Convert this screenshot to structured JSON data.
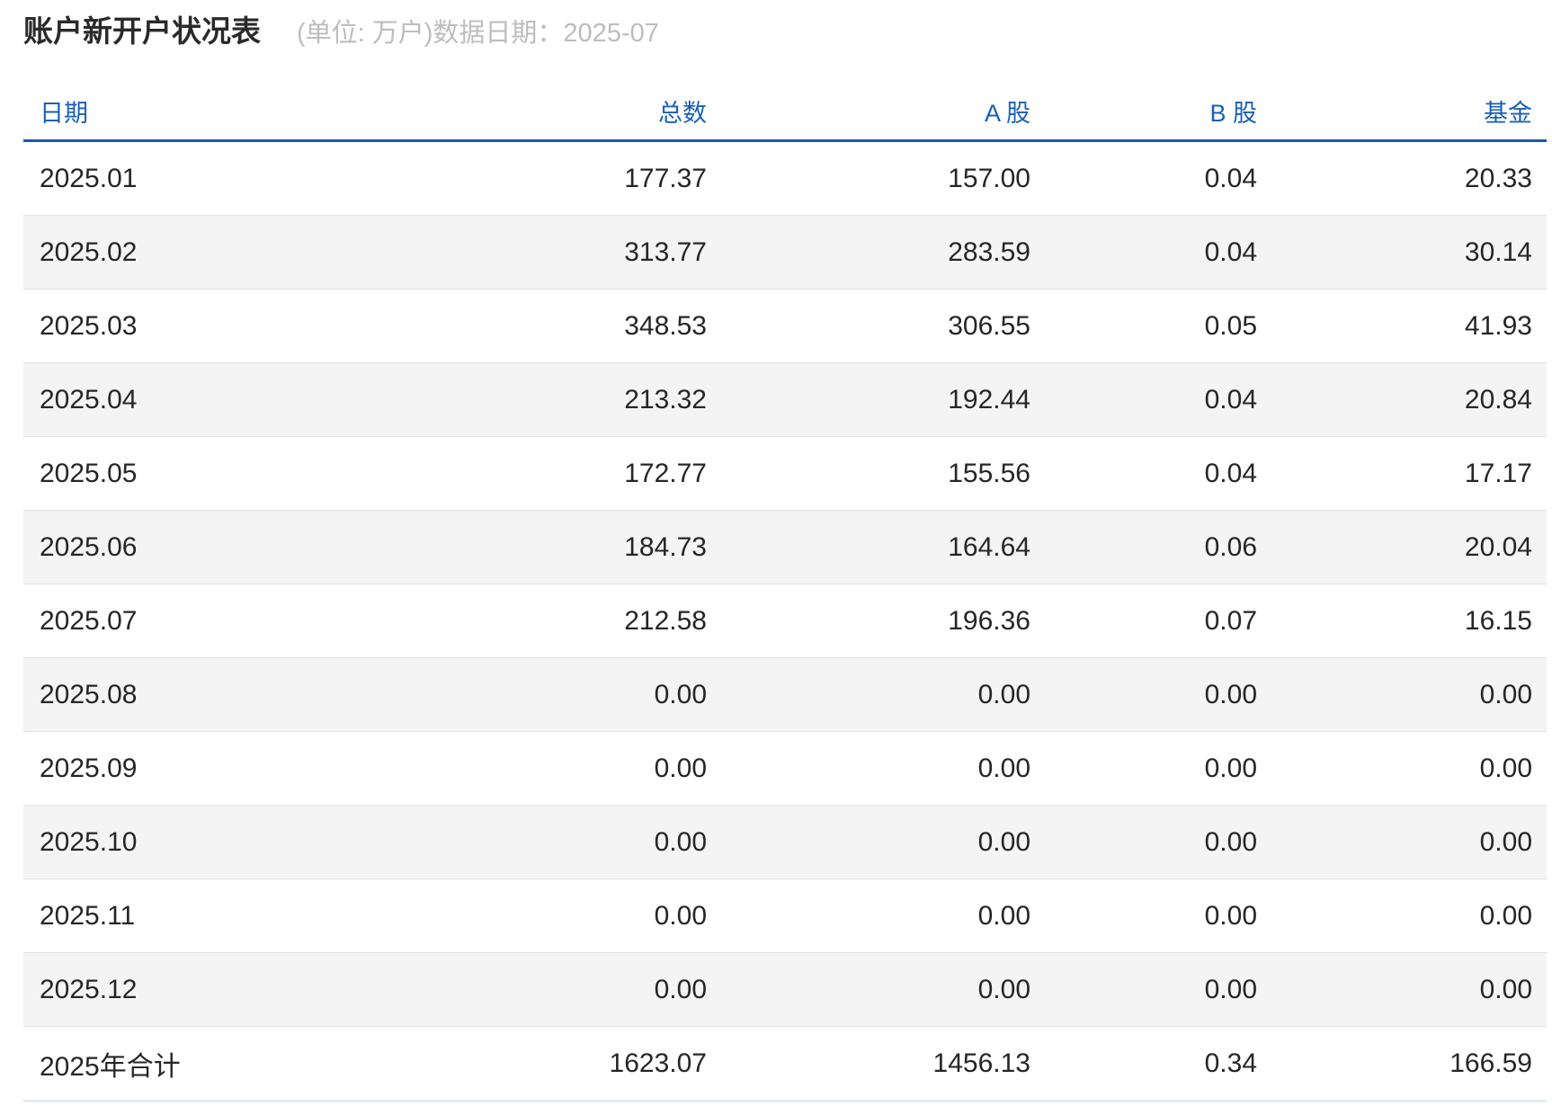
{
  "title": "账户新开户状况表",
  "subtitle": "(单位: 万户)数据日期：2025-07",
  "table": {
    "headers": [
      "日期",
      "总数",
      "A 股",
      "B 股",
      "基金"
    ],
    "rows": [
      [
        "2025.01",
        "177.37",
        "157.00",
        "0.04",
        "20.33"
      ],
      [
        "2025.02",
        "313.77",
        "283.59",
        "0.04",
        "30.14"
      ],
      [
        "2025.03",
        "348.53",
        "306.55",
        "0.05",
        "41.93"
      ],
      [
        "2025.04",
        "213.32",
        "192.44",
        "0.04",
        "20.84"
      ],
      [
        "2025.05",
        "172.77",
        "155.56",
        "0.04",
        "17.17"
      ],
      [
        "2025.06",
        "184.73",
        "164.64",
        "0.06",
        "20.04"
      ],
      [
        "2025.07",
        "212.58",
        "196.36",
        "0.07",
        "16.15"
      ],
      [
        "2025.08",
        "0.00",
        "0.00",
        "0.00",
        "0.00"
      ],
      [
        "2025.09",
        "0.00",
        "0.00",
        "0.00",
        "0.00"
      ],
      [
        "2025.10",
        "0.00",
        "0.00",
        "0.00",
        "0.00"
      ],
      [
        "2025.11",
        "0.00",
        "0.00",
        "0.00",
        "0.00"
      ],
      [
        "2025.12",
        "0.00",
        "0.00",
        "0.00",
        "0.00"
      ],
      [
        "2025年合计",
        "1623.07",
        "1456.13",
        "0.34",
        "166.59"
      ]
    ]
  },
  "colors": {
    "header_text": "#1a5fb4",
    "header_rule": "#1b5aab",
    "alt_row": "#f4f4f4"
  }
}
